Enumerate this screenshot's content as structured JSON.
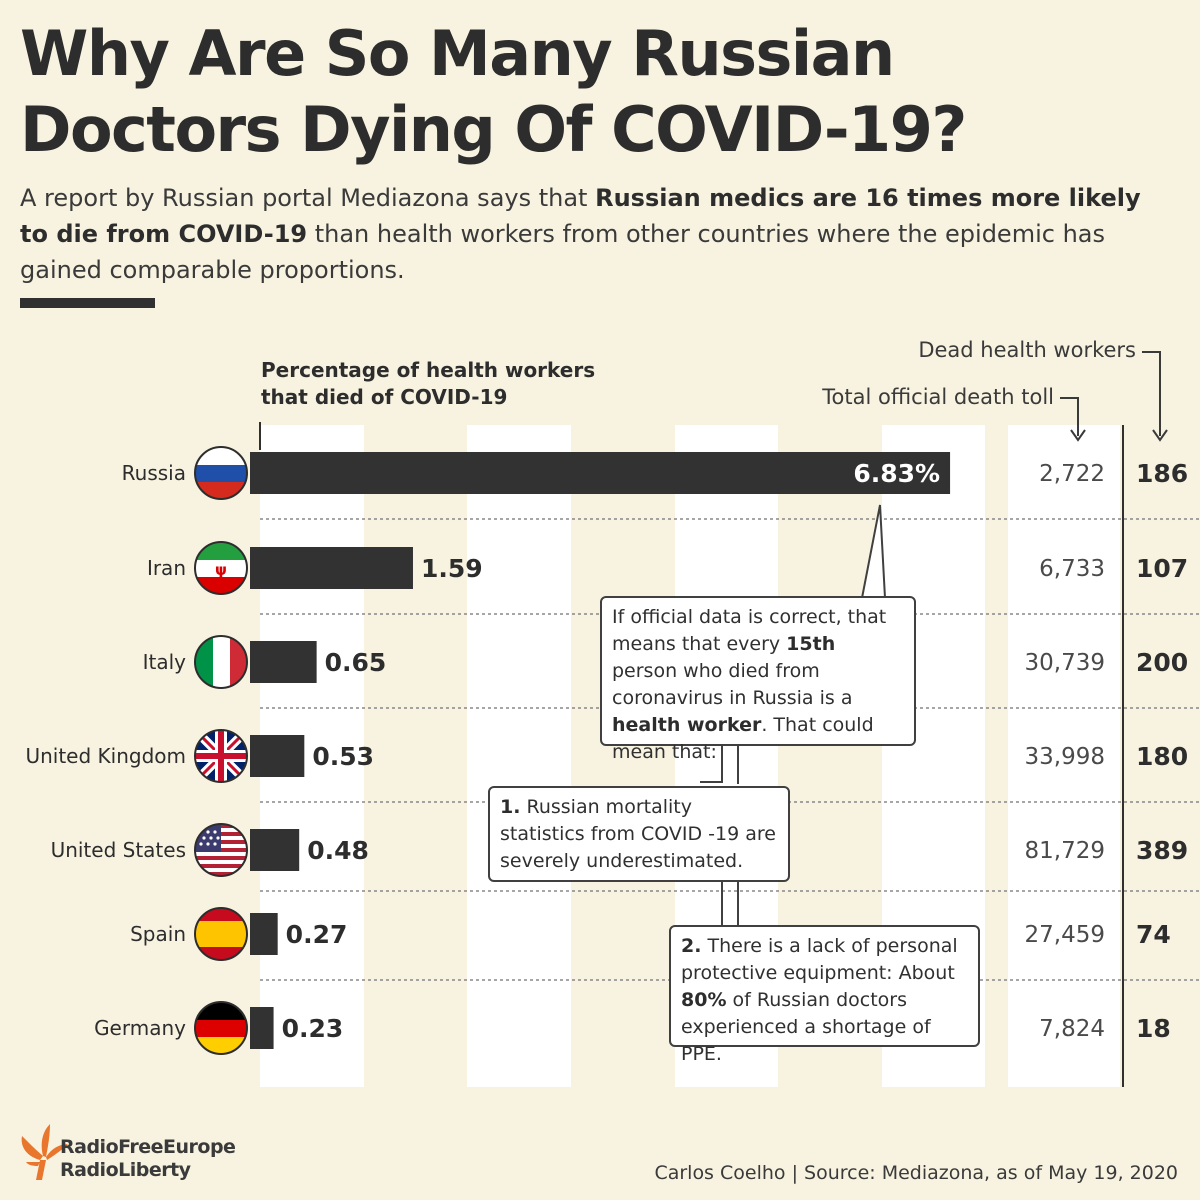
{
  "header": {
    "title_line1": "Why Are So Many Russian",
    "title_line2": "Doctors Dying Of COVID-19?",
    "subtitle": {
      "part1": "A report by Russian portal Mediazona says that ",
      "bold1": "Russian medics are 16 times more likely to die from COVID-19",
      "part2": " than health workers from other countries where the epidemic has gained comparable proportions."
    }
  },
  "chart_data": {
    "type": "bar",
    "orientation": "horizontal",
    "title": "Percentage of health workers that died of COVID-19",
    "column_headers": {
      "official_death_toll": "Total official death toll",
      "dead_health_workers": "Dead health workers"
    },
    "categories": [
      "Russia",
      "Iran",
      "Italy",
      "United Kingdom",
      "United States",
      "Spain",
      "Germany"
    ],
    "values": [
      6.83,
      1.59,
      0.65,
      0.53,
      0.48,
      0.27,
      0.23
    ],
    "value_labels": [
      "6.83%",
      "1.59",
      "0.65",
      "0.53",
      "0.48",
      "0.27",
      "0.23"
    ],
    "official_death_toll": [
      "2,722",
      "6,733",
      "30,739",
      "33,998",
      "81,729",
      "27,459",
      "7,824"
    ],
    "dead_health_workers": [
      "186",
      "107",
      "200",
      "180",
      "389",
      "74",
      "18"
    ],
    "xlim": [
      0,
      7
    ],
    "grid": true
  },
  "callouts": {
    "main": {
      "t1": "If official data is correct, that means that every ",
      "b1": "15th",
      "t2": " person who died from coronavirus in Russia is a ",
      "b2": "health worker",
      "t3": ". That could mean that:"
    },
    "point1": {
      "num": "1.",
      "text": " Russian mortality statistics from COVID -19 are severely underestimated."
    },
    "point2": {
      "num": "2.",
      "t1": " There is a lack of personal protective equipment: About ",
      "b1": "80%",
      "t2": " of Russian doctors experienced a shortage of PPE."
    }
  },
  "footer": {
    "logo_line1": "RadioFreeEurope",
    "logo_line2": "RadioLiberty",
    "credit": "Carlos Coelho | Source: Mediazona, as of May 19, 2020"
  },
  "colors": {
    "background": "#f8f3e0",
    "bar": "#323232",
    "column": "#ffffff",
    "logo_orange": "#e8762c"
  }
}
